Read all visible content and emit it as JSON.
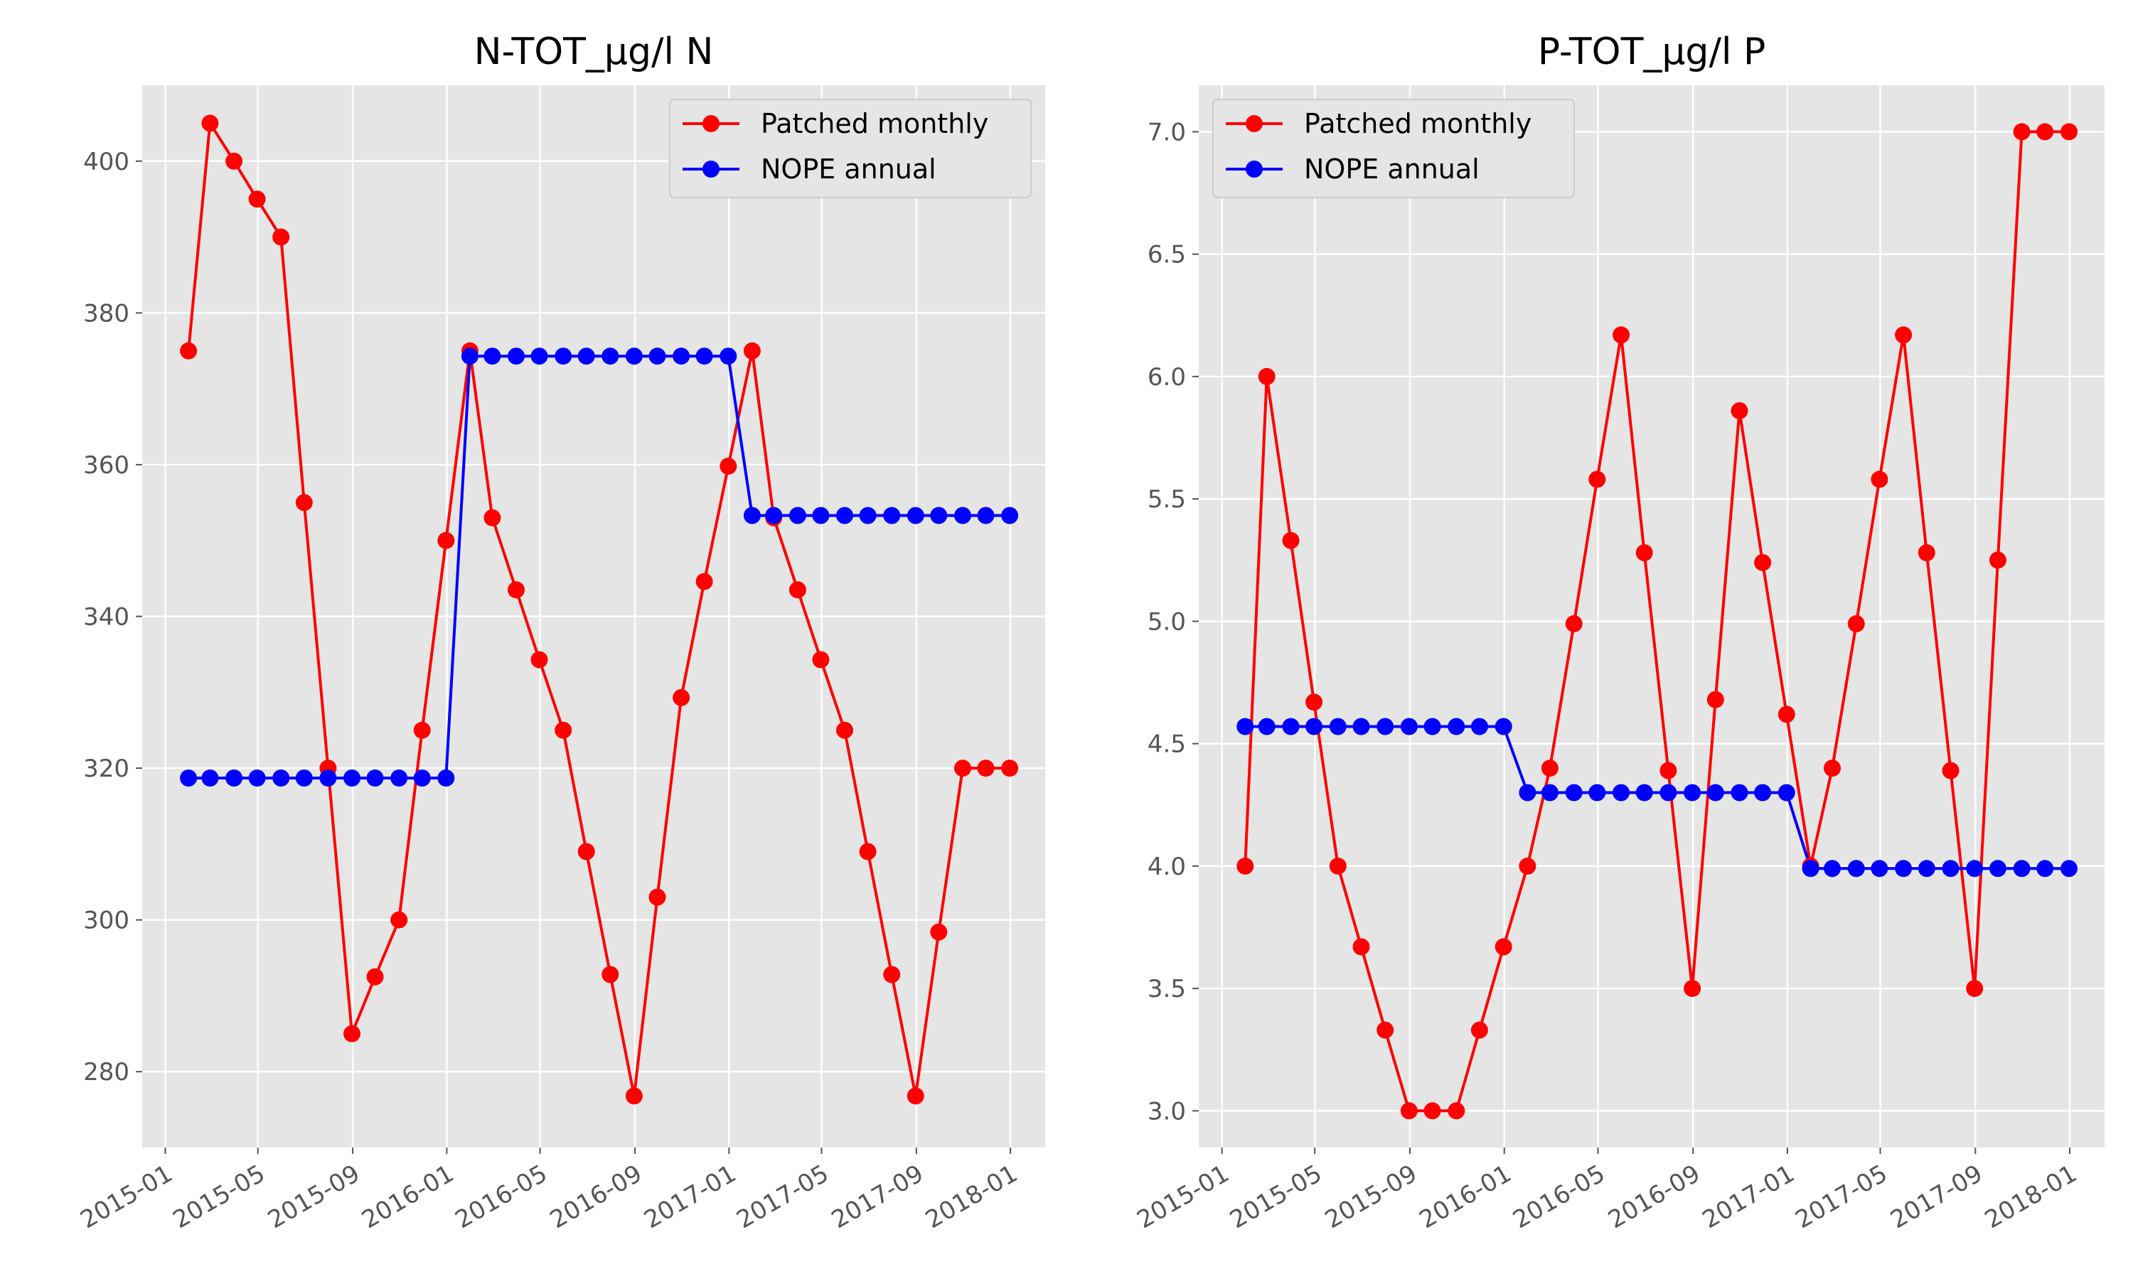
{
  "chart_data": [
    {
      "type": "line",
      "title": "N-TOT_µg/l N",
      "xlabel": "",
      "ylabel": "",
      "ylim": [
        270,
        410
      ],
      "xlim": [
        "2014-12-02",
        "2018-02-15"
      ],
      "grid": true,
      "legend_position": "top-right",
      "yticks": [
        280,
        300,
        320,
        340,
        360,
        380,
        400
      ],
      "xticks": [
        "2015-01",
        "2015-05",
        "2015-09",
        "2016-01",
        "2016-05",
        "2016-09",
        "2017-01",
        "2017-05",
        "2017-09",
        "2018-01"
      ],
      "x": [
        "2015-01-31",
        "2015-02-28",
        "2015-03-31",
        "2015-04-30",
        "2015-05-31",
        "2015-06-30",
        "2015-07-31",
        "2015-08-31",
        "2015-09-30",
        "2015-10-31",
        "2015-11-30",
        "2015-12-31",
        "2016-01-31",
        "2016-02-29",
        "2016-03-31",
        "2016-04-30",
        "2016-05-31",
        "2016-06-30",
        "2016-07-31",
        "2016-08-31",
        "2016-09-30",
        "2016-10-31",
        "2016-11-30",
        "2016-12-31",
        "2017-01-31",
        "2017-02-28",
        "2017-03-31",
        "2017-04-30",
        "2017-05-31",
        "2017-06-30",
        "2017-07-31",
        "2017-08-31",
        "2017-09-30",
        "2017-10-31",
        "2017-11-30",
        "2017-12-31"
      ],
      "series": [
        {
          "name": "Patched monthly",
          "color": "#ff0000",
          "values": [
            375,
            405,
            400,
            395,
            390,
            355,
            320,
            285,
            292.5,
            300,
            325,
            350,
            375,
            353,
            343.5,
            334.3,
            325,
            309,
            292.8,
            276.8,
            303,
            329.3,
            344.6,
            359.8,
            375,
            353,
            343.5,
            334.3,
            325,
            309,
            292.8,
            276.8,
            298.4,
            320,
            320,
            320
          ]
        },
        {
          "name": "NOPE annual",
          "color": "#0000ff",
          "values": [
            318.7,
            318.7,
            318.7,
            318.7,
            318.7,
            318.7,
            318.7,
            318.7,
            318.7,
            318.7,
            318.7,
            318.7,
            374.3,
            374.3,
            374.3,
            374.3,
            374.3,
            374.3,
            374.3,
            374.3,
            374.3,
            374.3,
            374.3,
            374.3,
            353.3,
            353.3,
            353.3,
            353.3,
            353.3,
            353.3,
            353.3,
            353.3,
            353.3,
            353.3,
            353.3,
            353.3
          ]
        }
      ]
    },
    {
      "type": "line",
      "title": "P-TOT_µg/l P",
      "xlabel": "",
      "ylabel": "",
      "ylim": [
        2.85,
        7.19
      ],
      "xlim": [
        "2014-12-02",
        "2018-02-15"
      ],
      "grid": true,
      "legend_position": "top-left",
      "yticks": [
        "3.0",
        "3.5",
        "4.0",
        "4.5",
        "5.0",
        "5.5",
        "6.0",
        "6.5",
        "7.0"
      ],
      "xticks": [
        "2015-01",
        "2015-05",
        "2015-09",
        "2016-01",
        "2016-05",
        "2016-09",
        "2017-01",
        "2017-05",
        "2017-09",
        "2018-01"
      ],
      "x": [
        "2015-01-31",
        "2015-02-28",
        "2015-03-31",
        "2015-04-30",
        "2015-05-31",
        "2015-06-30",
        "2015-07-31",
        "2015-08-31",
        "2015-09-30",
        "2015-10-31",
        "2015-11-30",
        "2015-12-31",
        "2016-01-31",
        "2016-02-29",
        "2016-03-31",
        "2016-04-30",
        "2016-05-31",
        "2016-06-30",
        "2016-07-31",
        "2016-08-31",
        "2016-09-30",
        "2016-10-31",
        "2016-11-30",
        "2016-12-31",
        "2017-01-31",
        "2017-02-28",
        "2017-03-31",
        "2017-04-30",
        "2017-05-31",
        "2017-06-30",
        "2017-07-31",
        "2017-08-31",
        "2017-09-30",
        "2017-10-31",
        "2017-11-30",
        "2017-12-31"
      ],
      "series": [
        {
          "name": "Patched monthly",
          "color": "#ff0000",
          "values": [
            4.0,
            6.0,
            5.33,
            4.67,
            4.0,
            3.67,
            3.33,
            3.0,
            3.0,
            3.0,
            3.33,
            3.67,
            4.0,
            4.4,
            4.99,
            5.58,
            6.17,
            5.28,
            4.39,
            3.5,
            4.68,
            5.86,
            5.24,
            4.62,
            4.0,
            4.4,
            4.99,
            5.58,
            6.17,
            5.28,
            4.39,
            3.5,
            5.25,
            7.0,
            7.0,
            7.0
          ]
        },
        {
          "name": "NOPE annual",
          "color": "#0000ff",
          "values": [
            4.57,
            4.57,
            4.57,
            4.57,
            4.57,
            4.57,
            4.57,
            4.57,
            4.57,
            4.57,
            4.57,
            4.57,
            4.3,
            4.3,
            4.3,
            4.3,
            4.3,
            4.3,
            4.3,
            4.3,
            4.3,
            4.3,
            4.3,
            4.3,
            3.99,
            3.99,
            3.99,
            3.99,
            3.99,
            3.99,
            3.99,
            3.99,
            3.99,
            3.99,
            3.99,
            3.99
          ]
        }
      ]
    }
  ]
}
